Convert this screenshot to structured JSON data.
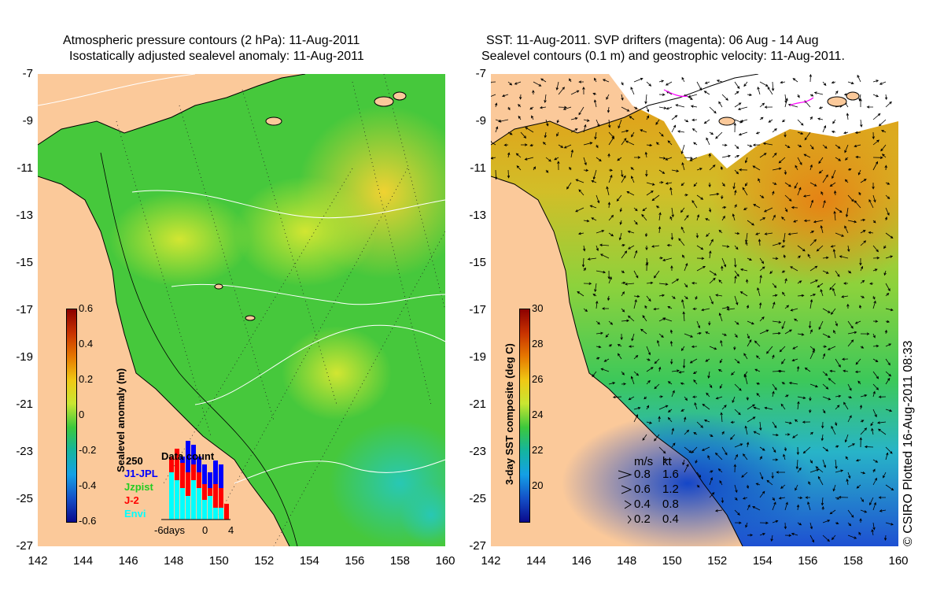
{
  "left_map": {
    "title_line1": "Atmospheric pressure contours (2 hPa): 11-Aug-2011",
    "title_line2": "Isostatically adjusted sealevel anomaly: 11-Aug-2011",
    "y_ticks": [
      "-7",
      "-9",
      "-11",
      "-13",
      "-15",
      "-17",
      "-19",
      "-21",
      "-23",
      "-25",
      "-27"
    ],
    "x_ticks": [
      "142",
      "144",
      "146",
      "148",
      "150",
      "152",
      "154",
      "156",
      "158",
      "160"
    ],
    "colorbar": {
      "label": "Sealevel anomaly (m)",
      "ticks": [
        "0.6",
        "0.4",
        "0.2",
        "0",
        "-0.2",
        "-0.4",
        "-0.6"
      ]
    },
    "inset": {
      "title": "Data count",
      "max_label": "250",
      "legend": [
        {
          "name": "J1-JPL",
          "color": "#0000ff"
        },
        {
          "name": "Jzpist",
          "color": "#22cc22"
        },
        {
          "name": "J-2",
          "color": "#ff0000"
        },
        {
          "name": "Envi",
          "color": "#00ffff"
        }
      ],
      "x_labels": [
        "-6days",
        "0",
        "4"
      ]
    }
  },
  "right_map": {
    "title_line1": "SST: 11-Aug-2011. SVP drifters (magenta): 06 Aug - 14 Aug",
    "title_line2": "Sealevel contours (0.1 m) and geostrophic velocity: 11-Aug-2011.",
    "y_ticks": [
      "-7",
      "-9",
      "-11",
      "-13",
      "-15",
      "-17",
      "-19",
      "-21",
      "-23",
      "-25",
      "-27"
    ],
    "x_ticks": [
      "142",
      "144",
      "146",
      "148",
      "150",
      "152",
      "154",
      "156",
      "158",
      "160"
    ],
    "colorbar": {
      "label": "3-day SST composite (deg C)",
      "ticks": [
        "30",
        "28",
        "26",
        "24",
        "22",
        "20"
      ]
    },
    "velocity_legend": {
      "header_ms": "m/s",
      "header_kt": "kt",
      "rows": [
        {
          "ms": "0.8",
          "kt": "1.6"
        },
        {
          "ms": "0.6",
          "kt": "1.2"
        },
        {
          "ms": "0.4",
          "kt": "0.8"
        },
        {
          "ms": "0.2",
          "kt": "0.4"
        }
      ]
    }
  },
  "credit": "© CSIRO Plotted 16-Aug-2011 08:33",
  "colors": {
    "land": "#fbc99a",
    "ocean_green": "#3cc83c",
    "ocean_yellow": "#e6e632",
    "sst_orange": "#e6960a",
    "sst_blue": "#1e64dc"
  }
}
